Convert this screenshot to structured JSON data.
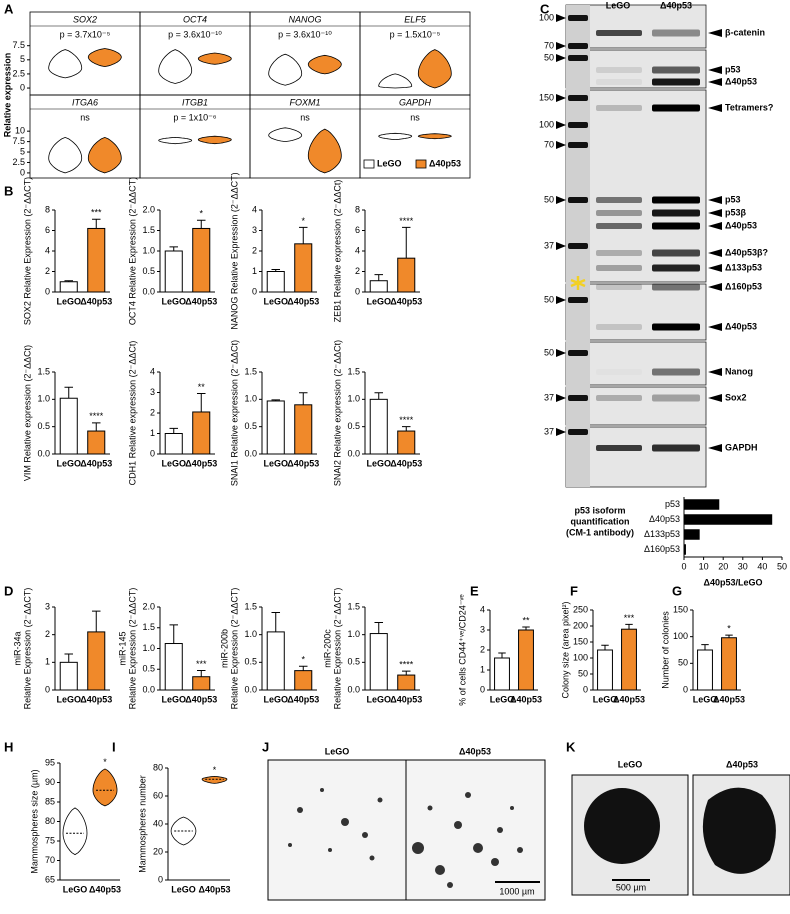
{
  "panel_labels": [
    "A",
    "B",
    "C",
    "D",
    "E",
    "F",
    "G",
    "H",
    "I",
    "J",
    "K"
  ],
  "chart_data": [
    {
      "type": "violin-grid",
      "ylabel": "Relative expression",
      "series": [
        {
          "name": "LeGO",
          "color": "#ffffff"
        },
        {
          "name": "Δ40p53",
          "color": "#f0892a"
        }
      ],
      "rows": [
        {
          "ylim": [
            -0.7,
            7.8
          ],
          "yticks": [
            0,
            2.5,
            5,
            7.5
          ],
          "panels": [
            {
              "title": "SOX2",
              "annotation": "p = 3.7x10⁻⁵",
              "values": [
                [
                  1.8,
                  3.5,
                  6.8
                ],
                [
                  3.8,
                  5.5,
                  7.0
                ]
              ]
            },
            {
              "title": "OCT4",
              "annotation": "p = 3.6x10⁻¹⁰",
              "values": [
                [
                  0.8,
                  3.0,
                  6.8
                ],
                [
                  4.2,
                  5.2,
                  6.2
                ]
              ]
            },
            {
              "title": "NANOG",
              "annotation": "p = 3.6x10⁻¹⁰",
              "values": [
                [
                  0.5,
                  2.5,
                  6.0
                ],
                [
                  2.5,
                  4.2,
                  5.8
                ]
              ]
            },
            {
              "title": "ELF5",
              "annotation": "p = 1.5x10⁻⁵",
              "values": [
                [
                  0,
                  0.3,
                  2.5
                ],
                [
                  0,
                  2.5,
                  6.8
                ]
              ]
            }
          ]
        },
        {
          "ylim": [
            -0.5,
            11
          ],
          "yticks": [
            0,
            2.5,
            5,
            7.5,
            10
          ],
          "panels": [
            {
              "title": "ITGA6",
              "annotation": "ns",
              "values": [
                [
                  0,
                  3.5,
                  8.5
                ],
                [
                  0,
                  3.5,
                  8.5
                ]
              ]
            },
            {
              "title": "ITGB1",
              "annotation": "p = 1x10⁻⁶",
              "values": [
                [
                  7.0,
                  7.8,
                  8.5
                ],
                [
                  7.0,
                  8.0,
                  8.8
                ]
              ]
            },
            {
              "title": "FOXM1",
              "annotation": "ns",
              "values": [
                [
                  7.5,
                  9.0,
                  10.8
                ],
                [
                  0,
                  4.0,
                  10.5
                ]
              ]
            },
            {
              "title": "GAPDH",
              "annotation": "ns",
              "values": [
                [
                  8.0,
                  8.8,
                  9.5
                ],
                [
                  8.2,
                  8.8,
                  9.4
                ]
              ]
            }
          ]
        }
      ]
    },
    {
      "type": "bar",
      "ylabel": "SOX2 Relative Expression (2⁻ΔΔCT)",
      "categories": [
        "LeGO",
        "Δ40p53"
      ],
      "values": [
        1.0,
        6.2
      ],
      "errors": [
        0.1,
        0.9
      ],
      "annotation": "***",
      "colors": [
        "#ffffff",
        "#f0892a"
      ],
      "ylim": [
        0,
        8
      ],
      "yticks": [
        0,
        2,
        4,
        6,
        8
      ]
    },
    {
      "type": "bar",
      "ylabel": "OCT4 Relative Expression (2⁻ΔΔCT)",
      "categories": [
        "LeGO",
        "Δ40p53"
      ],
      "values": [
        1.0,
        1.55
      ],
      "errors": [
        0.1,
        0.2
      ],
      "annotation": "*",
      "colors": [
        "#ffffff",
        "#f0892a"
      ],
      "ylim": [
        0,
        2
      ],
      "yticks": [
        {
          "value": 0,
          "label": "0.0"
        },
        {
          "value": 0.5,
          "label": "0.5"
        },
        {
          "value": 1,
          "label": "1.0"
        },
        {
          "value": 1.5,
          "label": "1.5"
        },
        {
          "value": 2,
          "label": "2.0"
        }
      ]
    },
    {
      "type": "bar",
      "ylabel": "NANOG Relative Expression (2⁻ΔΔCT)",
      "categories": [
        "LeGO",
        "Δ40p53"
      ],
      "values": [
        1.0,
        2.35
      ],
      "errors": [
        0.1,
        0.8
      ],
      "annotation": "*",
      "colors": [
        "#ffffff",
        "#f0892a"
      ],
      "ylim": [
        0,
        4
      ],
      "yticks": [
        0,
        1,
        2,
        3,
        4
      ]
    },
    {
      "type": "bar",
      "ylabel": "ZEB1 Relative expression (2⁻ΔΔCt)",
      "categories": [
        "LeGO",
        "Δ40p53"
      ],
      "values": [
        1.1,
        3.3
      ],
      "errors": [
        0.6,
        3.0
      ],
      "annotation": "****",
      "colors": [
        "#ffffff",
        "#f0892a"
      ],
      "ylim": [
        0,
        8
      ],
      "yticks": [
        0,
        2,
        4,
        6,
        8
      ]
    },
    {
      "type": "bar",
      "ylabel": "VIM Relative expression (2⁻ΔΔCt)",
      "categories": [
        "LeGO",
        "Δ40p53"
      ],
      "values": [
        1.02,
        0.42
      ],
      "errors": [
        0.2,
        0.15
      ],
      "annotation": "****",
      "colors": [
        "#ffffff",
        "#f0892a"
      ],
      "ylim": [
        0,
        1.5
      ],
      "yticks": [
        {
          "value": 0,
          "label": "0.0"
        },
        {
          "value": 0.5,
          "label": "0.5"
        },
        {
          "value": 1,
          "label": "1.0"
        },
        {
          "value": 1.5,
          "label": "1.5"
        }
      ]
    },
    {
      "type": "bar",
      "ylabel": "CDH1 Relative expression (2⁻ΔΔCt)",
      "categories": [
        "LeGO",
        "Δ40p53"
      ],
      "values": [
        1.0,
        2.05
      ],
      "errors": [
        0.25,
        0.9
      ],
      "annotation": "**",
      "colors": [
        "#ffffff",
        "#f0892a"
      ],
      "ylim": [
        0,
        4
      ],
      "yticks": [
        0,
        1,
        2,
        3,
        4
      ]
    },
    {
      "type": "bar",
      "ylabel": "SNAI1 Relative expression (2⁻ΔΔCt)",
      "categories": [
        "LeGO",
        "Δ40p53"
      ],
      "values": [
        0.97,
        0.9
      ],
      "errors": [
        0.02,
        0.22
      ],
      "colors": [
        "#ffffff",
        "#f0892a"
      ],
      "ylim": [
        0,
        1.5
      ],
      "yticks": [
        {
          "value": 0,
          "label": "0.0"
        },
        {
          "value": 0.5,
          "label": "0.5"
        },
        {
          "value": 1,
          "label": "1.0"
        },
        {
          "value": 1.5,
          "label": "1.5"
        }
      ]
    },
    {
      "type": "bar",
      "ylabel": "SNAI2 Relative expression (2⁻ΔΔCt)",
      "categories": [
        "LeGO",
        "Δ40p53"
      ],
      "values": [
        1.0,
        0.42
      ],
      "errors": [
        0.12,
        0.08
      ],
      "annotation": "****",
      "colors": [
        "#ffffff",
        "#f0892a"
      ],
      "ylim": [
        0,
        1.5
      ],
      "yticks": [
        {
          "value": 0,
          "label": "0.0"
        },
        {
          "value": 0.5,
          "label": "0.5"
        },
        {
          "value": 1,
          "label": "1.0"
        },
        {
          "value": 1.5,
          "label": "1.5"
        }
      ]
    },
    {
      "type": "bar",
      "ylabel": [
        "miR-34a",
        "Relative Expression (2⁻ΔΔCT)"
      ],
      "categories": [
        "LeGO",
        "Δ40p53"
      ],
      "values": [
        1.0,
        2.1
      ],
      "errors": [
        0.3,
        0.75
      ],
      "colors": [
        "#ffffff",
        "#f0892a"
      ],
      "ylim": [
        0,
        3
      ],
      "yticks": [
        0,
        1,
        2,
        3
      ]
    },
    {
      "type": "bar",
      "ylabel": [
        "miR-145",
        "Relative Expression (2⁻ΔΔCT)"
      ],
      "categories": [
        "LeGO",
        "Δ40p53"
      ],
      "values": [
        1.12,
        0.32
      ],
      "errors": [
        0.45,
        0.15
      ],
      "annotation": "***",
      "colors": [
        "#ffffff",
        "#f0892a"
      ],
      "ylim": [
        0,
        2
      ],
      "yticks": [
        {
          "value": 0,
          "label": "0.0"
        },
        {
          "value": 0.5,
          "label": "0.5"
        },
        {
          "value": 1,
          "label": "1.0"
        },
        {
          "value": 1.5,
          "label": "1.5"
        },
        {
          "value": 2,
          "label": "2.0"
        }
      ]
    },
    {
      "type": "bar",
      "ylabel": [
        "miR-200b",
        "Relative Expression (2⁻ΔΔCT)"
      ],
      "categories": [
        "LeGO",
        "Δ40p53"
      ],
      "values": [
        1.05,
        0.35
      ],
      "errors": [
        0.35,
        0.08
      ],
      "annotation": "*",
      "colors": [
        "#ffffff",
        "#f0892a"
      ],
      "ylim": [
        0,
        1.5
      ],
      "yticks": [
        {
          "value": 0,
          "label": "0.0"
        },
        {
          "value": 0.5,
          "label": "0.5"
        },
        {
          "value": 1,
          "label": "1.0"
        },
        {
          "value": 1.5,
          "label": "1.5"
        }
      ]
    },
    {
      "type": "bar",
      "ylabel": [
        "miR-200c",
        "Relative Expression (2⁻ΔΔCT)"
      ],
      "categories": [
        "LeGO",
        "Δ40p53"
      ],
      "values": [
        1.02,
        0.27
      ],
      "errors": [
        0.2,
        0.07
      ],
      "annotation": "****",
      "colors": [
        "#ffffff",
        "#f0892a"
      ],
      "ylim": [
        0,
        1.5
      ],
      "yticks": [
        {
          "value": 0,
          "label": "0.0"
        },
        {
          "value": 0.5,
          "label": "0.5"
        },
        {
          "value": 1,
          "label": "1.0"
        },
        {
          "value": 1.5,
          "label": "1.5"
        }
      ]
    },
    {
      "type": "bar",
      "ylabel": "% of cells CD44⁺ᵛᵉ/CD24⁻ᵛᵉ",
      "categories": [
        "LeGO",
        "Δ40p53"
      ],
      "values": [
        1.6,
        3.0
      ],
      "errors": [
        0.25,
        0.15
      ],
      "annotation": "**",
      "colors": [
        "#ffffff",
        "#f0892a"
      ],
      "ylim": [
        0,
        4
      ],
      "yticks": [
        0,
        1,
        2,
        3,
        4
      ]
    },
    {
      "type": "bar",
      "ylabel": "Colony size (area pixel²)",
      "categories": [
        "LeGO",
        "Δ40p53"
      ],
      "values": [
        125,
        190
      ],
      "errors": [
        15,
        15
      ],
      "annotation": "***",
      "colors": [
        "#ffffff",
        "#f0892a"
      ],
      "ylim": [
        0,
        250
      ],
      "yticks": [
        0,
        50,
        100,
        150,
        200,
        250
      ]
    },
    {
      "type": "bar",
      "ylabel": "Number of colonies",
      "categories": [
        "LeGO",
        "Δ40p53"
      ],
      "values": [
        75,
        98
      ],
      "errors": [
        10,
        5
      ],
      "annotation": "*",
      "colors": [
        "#ffffff",
        "#f0892a"
      ],
      "ylim": [
        0,
        150
      ],
      "yticks": [
        0,
        50,
        100,
        150
      ]
    },
    {
      "type": "violin",
      "ylabel": "Mammospheres size (µm)",
      "categories": [
        "LeGO",
        "Δ40p53"
      ],
      "values": [
        [
          71.5,
          77,
          83.5
        ],
        [
          84,
          88,
          93.5
        ]
      ],
      "annotation": "*",
      "colors": [
        "#ffffff",
        "#f0892a"
      ],
      "ylim": [
        65,
        95
      ],
      "yticks": [
        65,
        70,
        75,
        80,
        85,
        90,
        95
      ]
    },
    {
      "type": "violin",
      "ylabel": "Mammospheres number",
      "categories": [
        "LeGO",
        "Δ40p53"
      ],
      "values": [
        [
          25,
          35,
          45
        ],
        [
          69,
          72,
          74
        ]
      ],
      "annotation": "*",
      "colors": [
        "#ffffff",
        "#f0892a"
      ],
      "ylim": [
        0,
        80
      ],
      "yticks": [
        0,
        20,
        40,
        60,
        80
      ]
    },
    {
      "type": "hbar",
      "annotation": [
        "p53 isoform",
        "quantification",
        "(CM-1 antibody)"
      ],
      "categories": [
        "p53",
        "Δ40p53",
        "Δ133p53",
        "Δ160p53"
      ],
      "values": [
        18,
        45,
        8,
        1
      ],
      "color": "#000000",
      "xlim": [
        0,
        50
      ],
      "xticks": [
        0,
        10,
        20,
        30,
        40,
        50
      ],
      "xlabel": "Δ40p53/LeGO"
    }
  ],
  "blot": {
    "lanes": [
      "LeGO",
      "Δ40p53"
    ],
    "markers": [
      100,
      70,
      50,
      150,
      100,
      70,
      50,
      37,
      50,
      50,
      37,
      37
    ],
    "bands": [
      "β-catenin",
      "p53",
      "Δ40p53",
      "Tetramers?",
      "p53",
      "p53β",
      "Δ40p53",
      "Δ40p53β?",
      "Δ133p53",
      "Δ160p53",
      "Δ40p53",
      "Nanog",
      "Sox2",
      "GAPDH"
    ]
  },
  "images": {
    "colonies": {
      "labels": [
        "LeGO",
        "Δ40p53"
      ],
      "scale_bar": "1000 µm"
    },
    "spheres": {
      "labels": [
        "LeGO",
        "Δ40p53"
      ],
      "scale_bar": "500 µm"
    }
  }
}
